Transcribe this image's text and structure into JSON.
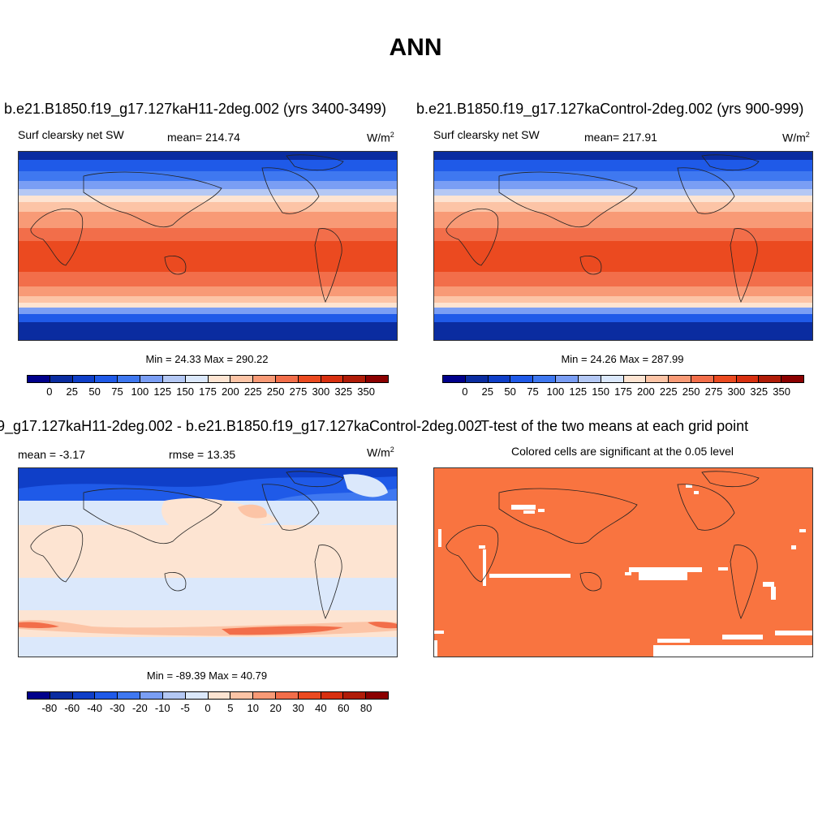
{
  "title": "ANN",
  "panels": {
    "test": {
      "case_title": "b.e21.B1850.f19_g17.127kaH11-2deg.002 (yrs 3400-3499)",
      "left_label": "Surf clearsky net SW",
      "center_label": "mean= 214.74",
      "units": "W/m",
      "units_exp": "2",
      "minmax": "Min =  24.33 Max = 290.22"
    },
    "control": {
      "case_title": "b.e21.B1850.f19_g17.127kaControl-2deg.002 (yrs 900-999)",
      "left_label": "Surf clearsky net SW",
      "center_label": "mean= 217.91",
      "units": "W/m",
      "units_exp": "2",
      "minmax": "Min =  24.26 Max = 287.99"
    },
    "diff": {
      "case_title": "9_g17.127kaH11-2deg.002 - b.e21.B1850.f19_g17.127kaControl-2deg.002",
      "left_label": "mean =  -3.17",
      "center_label": "rmse =  13.35",
      "units": "W/m",
      "units_exp": "2",
      "minmax": "Min = -89.39 Max =  40.79"
    },
    "ttest": {
      "case_title": "T-test of the two means at each grid point",
      "center_label": "Colored cells are significant at the 0.05 level"
    }
  },
  "colorbars": {
    "field": {
      "colors": [
        "#00008b",
        "#0a2ca0",
        "#0f3fc8",
        "#1f5ae8",
        "#3f78f0",
        "#7a9ef4",
        "#b4c8f4",
        "#dbe8fb",
        "#fde4d2",
        "#fcc4a6",
        "#f89a76",
        "#f26e4a",
        "#eb4a20",
        "#d83010",
        "#b01c08",
        "#8b0000"
      ],
      "labels": [
        "0",
        "25",
        "50",
        "75",
        "100",
        "125",
        "150",
        "175",
        "200",
        "225",
        "250",
        "275",
        "300",
        "325",
        "350"
      ]
    },
    "diff": {
      "colors": [
        "#00008b",
        "#0a2ca0",
        "#0f3fc8",
        "#1f5ae8",
        "#3f78f0",
        "#7a9ef4",
        "#b4c8f4",
        "#dbe8fb",
        "#fde4d2",
        "#fcc4a6",
        "#f89a76",
        "#f26e4a",
        "#eb4a20",
        "#d83010",
        "#b01c08",
        "#8b0000"
      ],
      "labels": [
        "-80",
        "-60",
        "-40",
        "-30",
        "-20",
        "-10",
        "-5",
        "0",
        "5",
        "10",
        "20",
        "30",
        "40",
        "60",
        "80"
      ]
    }
  }
}
